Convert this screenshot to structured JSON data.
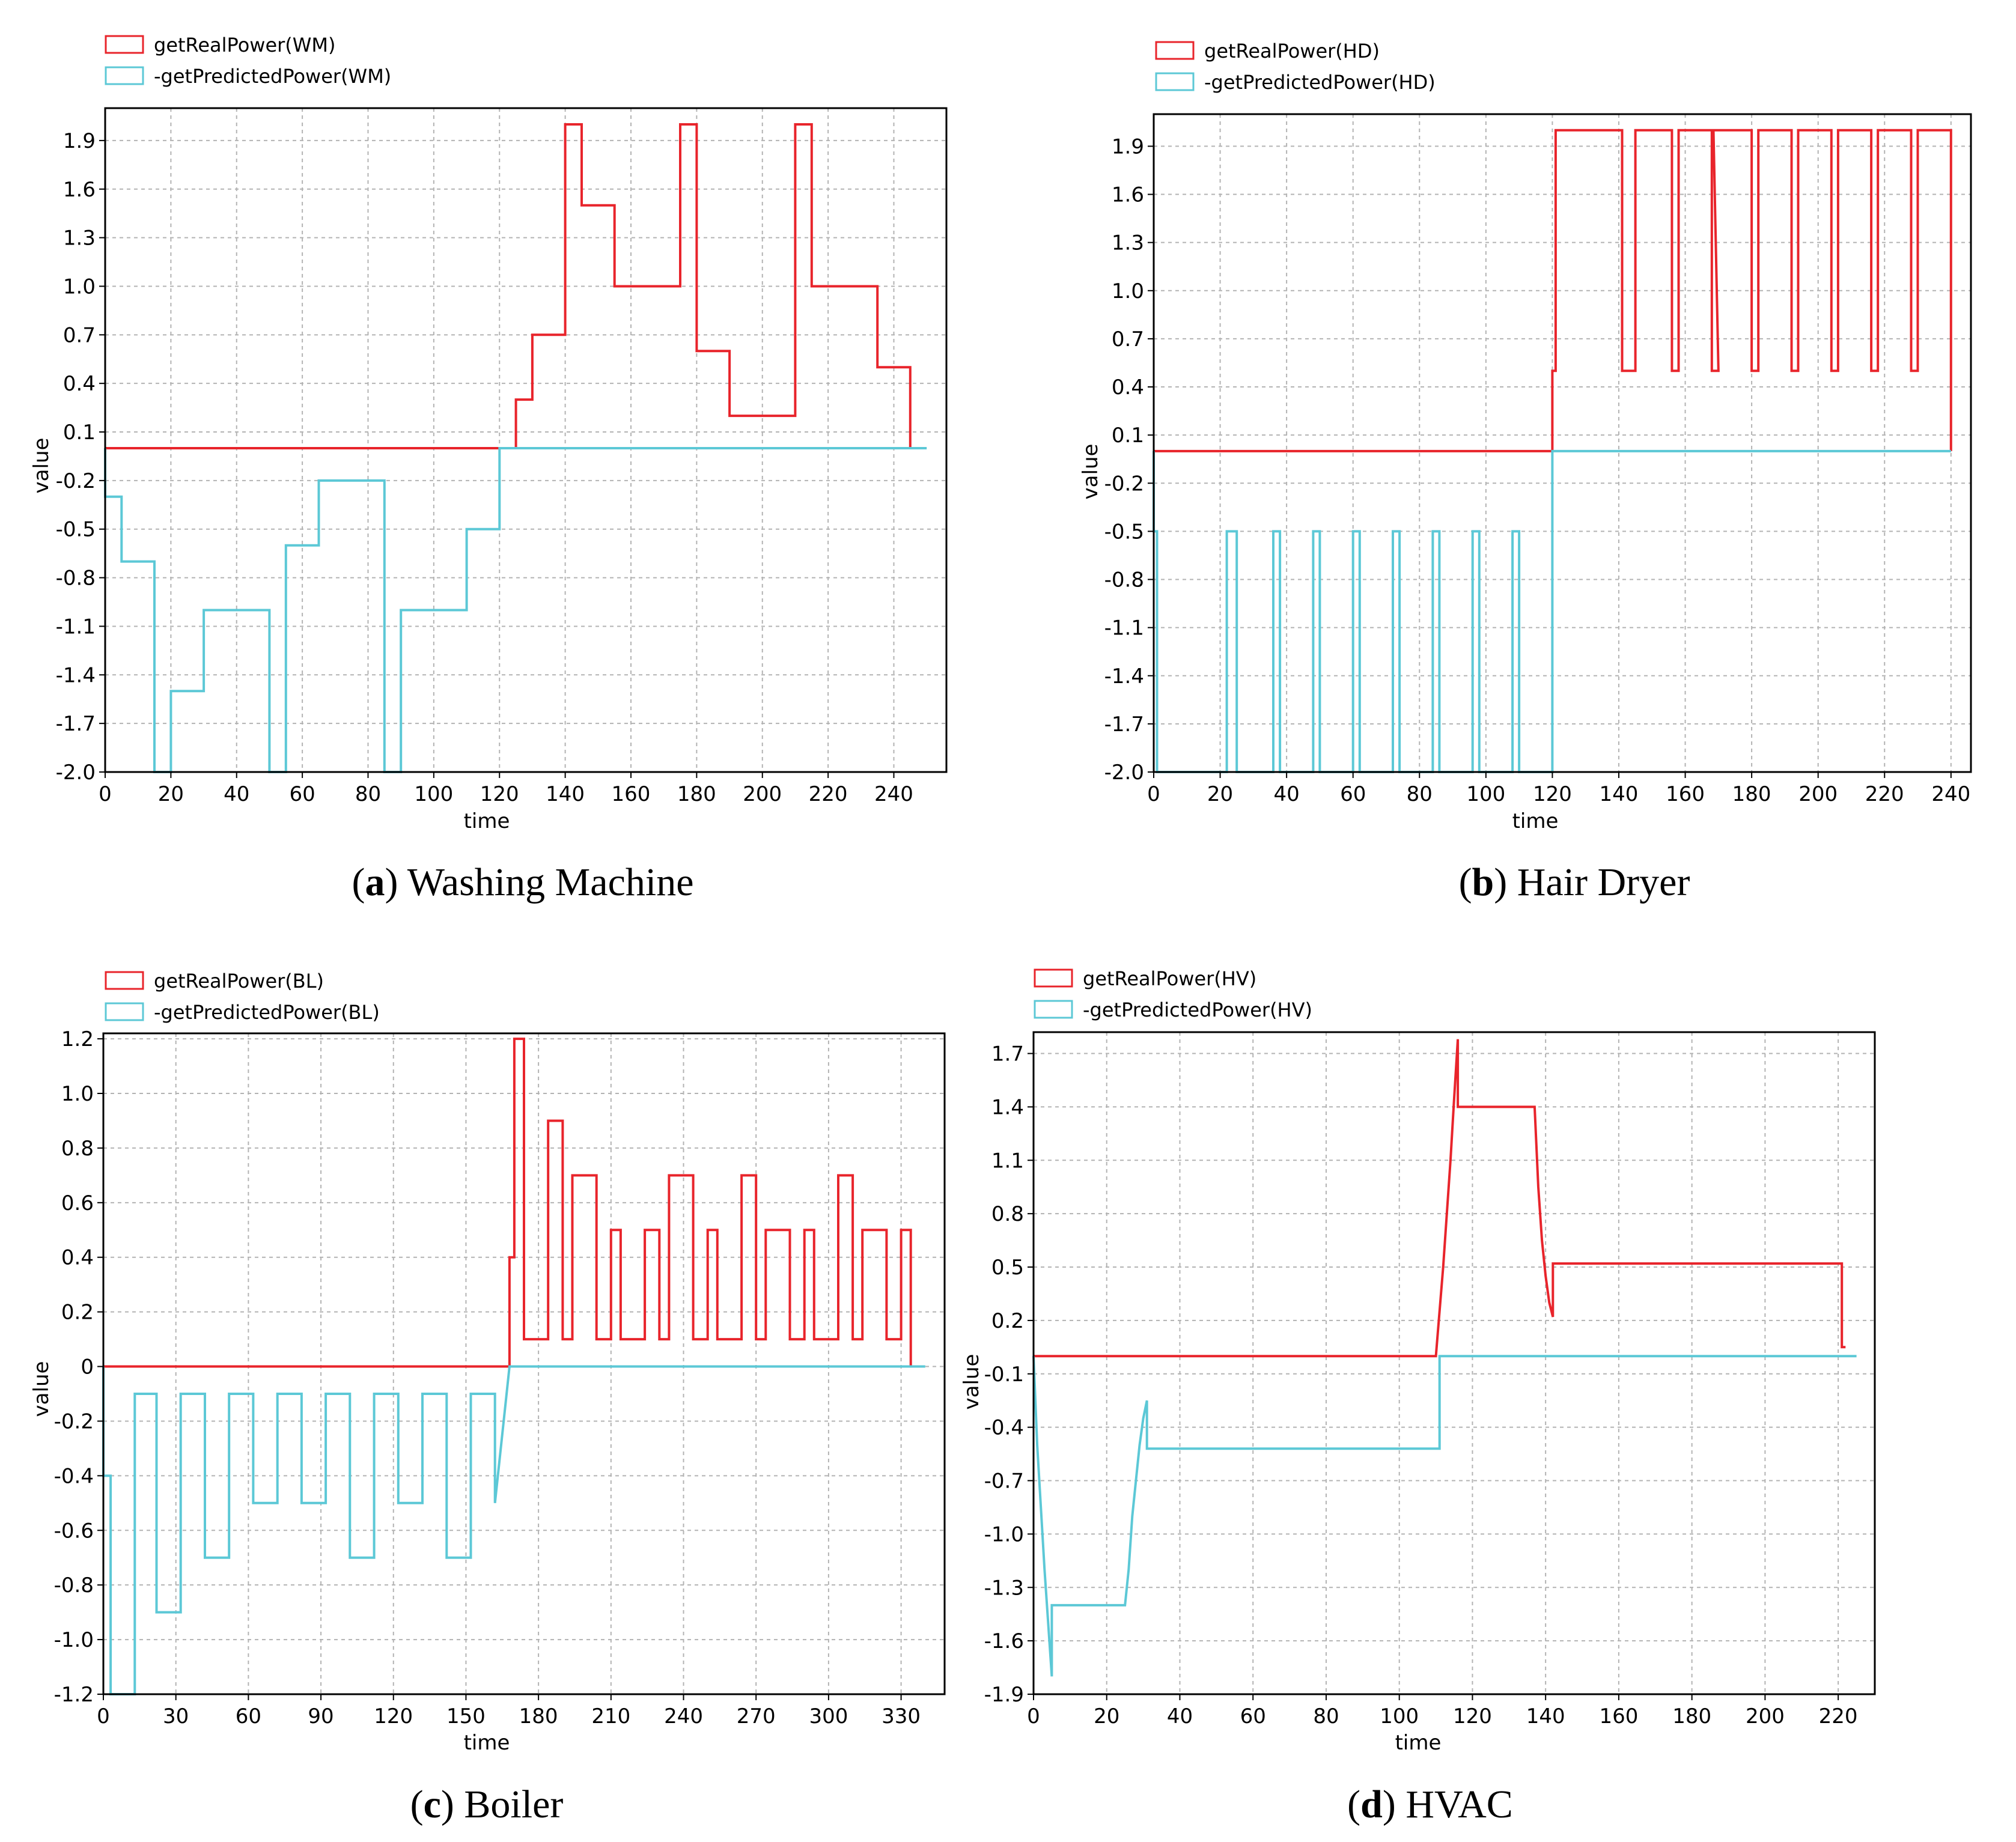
{
  "figure": {
    "panels": [
      {
        "letter": "a",
        "caption": "Washing Machine"
      },
      {
        "letter": "b",
        "caption": "Hair Dryer"
      },
      {
        "letter": "c",
        "caption": "Boiler"
      },
      {
        "letter": "d",
        "caption": "HVAC"
      }
    ]
  },
  "colors": {
    "real": "#e8242b",
    "predicted": "#5cc8d6",
    "grid": "#b3b3b3"
  },
  "chart_data": [
    {
      "type": "line",
      "step": true,
      "xlabel": "time",
      "ylabel": "value",
      "xlim": [
        0,
        256
      ],
      "ylim": [
        -2.0,
        2.1
      ],
      "xticks": [
        0,
        20,
        40,
        60,
        80,
        100,
        120,
        140,
        160,
        180,
        200,
        220,
        240
      ],
      "yticks": [
        -2.0,
        -1.7,
        -1.4,
        -1.1,
        -0.8,
        -0.5,
        -0.2,
        0.1,
        0.4,
        0.7,
        1.0,
        1.3,
        1.6,
        1.9
      ],
      "ytick_labels": [
        "-2.0",
        "-1.7",
        "-1.4",
        "-1.1",
        "-0.8",
        "-0.5",
        "-0.2",
        "0.1",
        "0.4",
        "0.7",
        "1.0",
        "1.3",
        "1.6",
        "1.9"
      ],
      "legend": [
        "getRealPower(WM)",
        "-getPredictedPower(WM)"
      ],
      "series": [
        {
          "name": "getRealPower(WM)",
          "color": "real",
          "x": [
            0,
            120,
            120,
            125,
            125,
            130,
            130,
            140,
            140,
            145,
            145,
            155,
            155,
            175,
            175,
            180,
            180,
            190,
            190,
            210,
            210,
            215,
            215,
            235,
            235,
            245,
            245
          ],
          "y": [
            0,
            0,
            0,
            0,
            0.3,
            0.3,
            0.7,
            0.7,
            2.0,
            2.0,
            1.5,
            1.5,
            1.0,
            1.0,
            2.0,
            2.0,
            0.6,
            0.6,
            0.2,
            0.2,
            2.0,
            2.0,
            1.0,
            1.0,
            0.5,
            0.5,
            0
          ]
        },
        {
          "name": "-getPredictedPower(WM)",
          "color": "predicted",
          "x": [
            0,
            0,
            5,
            5,
            15,
            15,
            20,
            20,
            30,
            30,
            50,
            50,
            55,
            55,
            65,
            65,
            85,
            85,
            90,
            90,
            110,
            110,
            120,
            120,
            250
          ],
          "y": [
            0,
            -0.3,
            -0.3,
            -0.7,
            -0.7,
            -2.0,
            -2.0,
            -1.5,
            -1.5,
            -1.0,
            -1.0,
            -2.0,
            -2.0,
            -0.6,
            -0.6,
            -0.2,
            -0.2,
            -2.0,
            -2.0,
            -1.0,
            -1.0,
            -0.5,
            -0.5,
            0,
            0
          ]
        }
      ]
    },
    {
      "type": "line",
      "step": true,
      "xlabel": "time",
      "ylabel": "value",
      "xlim": [
        0,
        246
      ],
      "ylim": [
        -2.0,
        2.1
      ],
      "xticks": [
        0,
        20,
        40,
        60,
        80,
        100,
        120,
        140,
        160,
        180,
        200,
        220,
        240
      ],
      "yticks": [
        -2.0,
        -1.7,
        -1.4,
        -1.1,
        -0.8,
        -0.5,
        -0.2,
        0.1,
        0.4,
        0.7,
        1.0,
        1.3,
        1.6,
        1.9
      ],
      "ytick_labels": [
        "-2.0",
        "-1.7",
        "-1.4",
        "-1.1",
        "-0.8",
        "-0.5",
        "-0.2",
        "0.1",
        "0.4",
        "0.7",
        "1.0",
        "1.3",
        "1.6",
        "1.9"
      ],
      "legend": [
        "getRealPower(HD)",
        "-getPredictedPower(HD)"
      ],
      "series": [
        {
          "name": "getRealPower(HD)",
          "color": "real",
          "x": [
            0,
            120,
            120,
            121,
            121,
            141,
            141,
            145,
            145,
            156,
            156,
            158,
            158,
            168,
            168,
            170,
            168.5,
            180,
            180,
            182,
            182,
            192,
            192,
            194,
            194,
            204,
            204,
            206,
            206,
            216,
            216,
            218,
            218,
            228,
            228,
            230,
            230,
            240,
            240
          ],
          "y": [
            0,
            0,
            0.5,
            0.5,
            2.0,
            2.0,
            0.5,
            0.5,
            2.0,
            2.0,
            0.5,
            0.5,
            2.0,
            2.0,
            0.5,
            0.5,
            2.0,
            2.0,
            0.5,
            0.5,
            2.0,
            2.0,
            0.5,
            0.5,
            2.0,
            2.0,
            0.5,
            0.5,
            2.0,
            2.0,
            0.5,
            0.5,
            2.0,
            2.0,
            0.5,
            0.5,
            2.0,
            2.0,
            0
          ]
        },
        {
          "name": "-getPredictedPower(HD)",
          "color": "predicted",
          "x": [
            0,
            0,
            1,
            1,
            2,
            2,
            22,
            22,
            25,
            25,
            36,
            36,
            38,
            38,
            48,
            48,
            50,
            50,
            60,
            60,
            62,
            62,
            72,
            72,
            74,
            74,
            84,
            84,
            86,
            86,
            96,
            96,
            98,
            98,
            108,
            108,
            110,
            110,
            120,
            120,
            240
          ],
          "y": [
            0,
            -0.5,
            -0.5,
            -2.0,
            -2.0,
            -2.0,
            -2.0,
            -0.5,
            -0.5,
            -2.0,
            -2.0,
            -0.5,
            -0.5,
            -2.0,
            -2.0,
            -0.5,
            -0.5,
            -2.0,
            -2.0,
            -0.5,
            -0.5,
            -2.0,
            -2.0,
            -0.5,
            -0.5,
            -2.0,
            -2.0,
            -0.5,
            -0.5,
            -2.0,
            -2.0,
            -0.5,
            -0.5,
            -2.0,
            -2.0,
            -0.5,
            -0.5,
            -2.0,
            -2.0,
            0,
            0
          ]
        }
      ]
    },
    {
      "type": "line",
      "step": true,
      "xlabel": "time",
      "ylabel": "value",
      "xlim": [
        0,
        348
      ],
      "ylim": [
        -1.2,
        1.22
      ],
      "xticks": [
        0,
        30,
        60,
        90,
        120,
        150,
        180,
        210,
        240,
        270,
        300,
        330
      ],
      "yticks": [
        -1.2,
        -1.0,
        -0.8,
        -0.6,
        -0.4,
        -0.2,
        0,
        0.2,
        0.4,
        0.6,
        0.8,
        1.0,
        1.2
      ],
      "ytick_labels": [
        "-1.2",
        "-1.0",
        "-0.8",
        "-0.6",
        "-0.4",
        "-0.2",
        "0",
        "0.2",
        "0.4",
        "0.6",
        "0.8",
        "1.0",
        "1.2"
      ],
      "legend": [
        "getRealPower(BL)",
        "-getPredictedPower(BL)"
      ],
      "series": [
        {
          "name": "getRealPower(BL)",
          "color": "real",
          "x": [
            0,
            168,
            168,
            170,
            170,
            174,
            174,
            184,
            184,
            190,
            190,
            194,
            194,
            204,
            204,
            210,
            210,
            214,
            214,
            224,
            224,
            230,
            230,
            234,
            234,
            244,
            244,
            250,
            250,
            254,
            254,
            264,
            264,
            270,
            270,
            274,
            274,
            284,
            284,
            290,
            290,
            294,
            294,
            304,
            304,
            310,
            310,
            314,
            314,
            324,
            324,
            330,
            330,
            334,
            334
          ],
          "y": [
            0,
            0,
            0.4,
            0.4,
            1.2,
            1.2,
            0.1,
            0.1,
            0.9,
            0.9,
            0.1,
            0.1,
            0.7,
            0.7,
            0.1,
            0.1,
            0.5,
            0.5,
            0.1,
            0.1,
            0.5,
            0.5,
            0.1,
            0.1,
            0.7,
            0.7,
            0.1,
            0.1,
            0.5,
            0.5,
            0.1,
            0.1,
            0.7,
            0.7,
            0.1,
            0.1,
            0.5,
            0.5,
            0.1,
            0.1,
            0.5,
            0.5,
            0.1,
            0.1,
            0.7,
            0.7,
            0.1,
            0.1,
            0.5,
            0.5,
            0.1,
            0.1,
            0.5,
            0.5,
            0
          ]
        },
        {
          "name": "-getPredictedPower(BL)",
          "color": "predicted",
          "x": [
            0,
            0,
            3,
            3,
            13,
            13,
            22,
            22,
            32,
            32,
            42,
            42,
            52,
            52,
            62,
            62,
            72,
            72,
            82,
            82,
            92,
            92,
            102,
            102,
            112,
            112,
            122,
            122,
            132,
            132,
            142,
            142,
            152,
            152,
            162,
            162,
            168,
            340
          ],
          "y": [
            0,
            -0.4,
            -0.4,
            -1.2,
            -1.2,
            -0.1,
            -0.1,
            -0.9,
            -0.9,
            -0.1,
            -0.1,
            -0.7,
            -0.7,
            -0.1,
            -0.1,
            -0.5,
            -0.5,
            -0.1,
            -0.1,
            -0.5,
            -0.5,
            -0.1,
            -0.1,
            -0.7,
            -0.7,
            -0.1,
            -0.1,
            -0.5,
            -0.5,
            -0.1,
            -0.1,
            -0.7,
            -0.7,
            -0.1,
            -0.1,
            -0.5,
            0,
            0
          ]
        }
      ]
    },
    {
      "type": "line",
      "step": false,
      "xlabel": "time",
      "ylabel": "value",
      "xlim": [
        0,
        230
      ],
      "ylim": [
        -1.9,
        1.82
      ],
      "xticks": [
        0,
        20,
        40,
        60,
        80,
        100,
        120,
        140,
        160,
        180,
        200,
        220
      ],
      "yticks": [
        -1.9,
        -1.6,
        -1.3,
        -1.0,
        -0.7,
        -0.4,
        -0.1,
        0.2,
        0.5,
        0.8,
        1.1,
        1.4,
        1.7
      ],
      "ytick_labels": [
        "-1.9",
        "-1.6",
        "-1.3",
        "-1.0",
        "-0.7",
        "-0.4",
        "-0.1",
        "0.2",
        "0.5",
        "0.8",
        "1.1",
        "1.4",
        "1.7"
      ],
      "legend": [
        "getRealPower(HV)",
        "-getPredictedPower(HV)"
      ],
      "series": [
        {
          "name": "getRealPower(HV)",
          "color": "real",
          "x": [
            0,
            110,
            112,
            114,
            115,
            116,
            116,
            137,
            138,
            139,
            140,
            141,
            142,
            142,
            221,
            221,
            222
          ],
          "y": [
            0,
            0,
            0.5,
            1.1,
            1.45,
            1.78,
            1.4,
            1.4,
            0.95,
            0.65,
            0.45,
            0.3,
            0.22,
            0.52,
            0.52,
            0.05,
            0.05
          ]
        },
        {
          "name": "-getPredictedPower(HV)",
          "color": "predicted",
          "x": [
            0,
            1,
            3,
            5,
            5,
            6,
            25,
            26,
            27,
            28,
            29,
            30,
            31,
            31,
            111,
            111,
            225
          ],
          "y": [
            0,
            -0.5,
            -1.2,
            -1.8,
            -1.4,
            -1.4,
            -1.4,
            -1.2,
            -0.9,
            -0.7,
            -0.5,
            -0.35,
            -0.25,
            -0.52,
            -0.52,
            0,
            0
          ]
        }
      ]
    }
  ]
}
